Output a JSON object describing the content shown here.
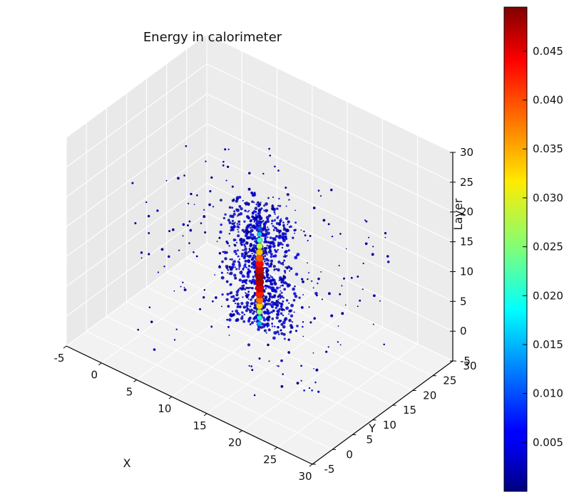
{
  "chart_data": {
    "type": "scatter3d",
    "title": "Energy in calorimeter",
    "xlabel": "X",
    "ylabel": "Y",
    "zlabel": "Layer",
    "xlim": [
      -5,
      30
    ],
    "ylim": [
      -5,
      30
    ],
    "zlim": [
      -5,
      30
    ],
    "xticks": [
      "-5",
      "0",
      "5",
      "10",
      "15",
      "20",
      "25",
      "30"
    ],
    "yticks": [
      "-5",
      "0",
      "5",
      "10",
      "15",
      "20",
      "25",
      "30"
    ],
    "zticks": [
      "-5",
      "0",
      "5",
      "10",
      "15",
      "20",
      "25",
      "30"
    ],
    "grid": true,
    "colormap": "jet",
    "colorbar": {
      "min": 0.0,
      "max": 0.0495,
      "ticks": [
        "0.005",
        "0.010",
        "0.015",
        "0.020",
        "0.025",
        "0.030",
        "0.035",
        "0.040",
        "0.045"
      ],
      "tick_values": [
        0.005,
        0.01,
        0.015,
        0.02,
        0.025,
        0.03,
        0.035,
        0.04,
        0.045
      ]
    },
    "shower_core": [
      {
        "x": 12.5,
        "y": 12.5,
        "z": 0,
        "energy": 0.015
      },
      {
        "x": 12.5,
        "y": 12.5,
        "z": 1,
        "energy": 0.02
      },
      {
        "x": 12.5,
        "y": 12.5,
        "z": 2,
        "energy": 0.026
      },
      {
        "x": 12.5,
        "y": 12.5,
        "z": 3,
        "energy": 0.033
      },
      {
        "x": 12.5,
        "y": 12.5,
        "z": 4,
        "energy": 0.038
      },
      {
        "x": 12.5,
        "y": 12.5,
        "z": 5,
        "energy": 0.042
      },
      {
        "x": 12.5,
        "y": 12.5,
        "z": 6,
        "energy": 0.045
      },
      {
        "x": 12.5,
        "y": 12.5,
        "z": 7,
        "energy": 0.047
      },
      {
        "x": 12.5,
        "y": 12.5,
        "z": 8,
        "energy": 0.048
      },
      {
        "x": 12.5,
        "y": 12.5,
        "z": 9,
        "energy": 0.046
      },
      {
        "x": 12.5,
        "y": 12.5,
        "z": 10,
        "energy": 0.043
      },
      {
        "x": 12.5,
        "y": 12.5,
        "z": 11,
        "energy": 0.039
      },
      {
        "x": 12.5,
        "y": 12.5,
        "z": 12,
        "energy": 0.034
      },
      {
        "x": 12.5,
        "y": 12.5,
        "z": 13,
        "energy": 0.028
      },
      {
        "x": 12.5,
        "y": 12.5,
        "z": 14,
        "energy": 0.022
      },
      {
        "x": 12.5,
        "y": 12.5,
        "z": 15,
        "energy": 0.016
      },
      {
        "x": 12.5,
        "y": 12.5,
        "z": 16,
        "energy": 0.011
      },
      {
        "x": 12.5,
        "y": 12.5,
        "z": 17,
        "energy": 0.007
      },
      {
        "x": 12.5,
        "y": 12.5,
        "z": 18,
        "energy": 0.004
      },
      {
        "x": 12.5,
        "y": 12.5,
        "z": 19,
        "energy": 0.002
      },
      {
        "x": 12.5,
        "y": 12.5,
        "z": 20,
        "energy": 0.001
      }
    ],
    "shower_halo": {
      "x_range": [
        9.5,
        15.5
      ],
      "y_range": [
        9.5,
        15.5
      ],
      "z_range": [
        0,
        20
      ],
      "energy_range": [
        0.0005,
        0.006
      ]
    },
    "noise_hits": {
      "x_range": [
        0,
        25
      ],
      "y_range": [
        0,
        25
      ],
      "z_range": [
        -4,
        22
      ],
      "energy_range": [
        0.0002,
        0.003
      ]
    }
  }
}
